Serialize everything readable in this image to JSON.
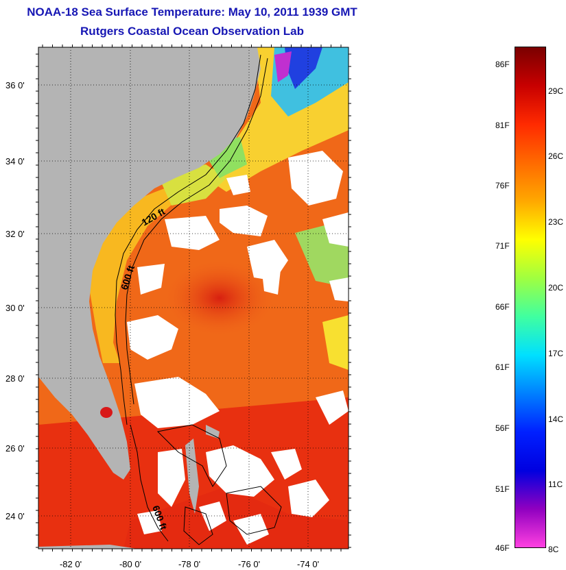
{
  "header": {
    "title": "NOAA-18 Sea Surface Temperature:  May 10, 2011 1939 GMT",
    "subtitle": "Rutgers Coastal Ocean Observation Lab"
  },
  "map": {
    "lat_labels": [
      "36 0'",
      "34 0'",
      "32 0'",
      "30 0'",
      "28 0'",
      "26 0'",
      "24 0'"
    ],
    "lon_labels": [
      "-82 0'",
      "-80 0'",
      "-78 0'",
      "-76 0'",
      "-74 0'"
    ],
    "contour_labels": [
      "120 ft",
      "600 ft",
      "600 ft"
    ],
    "colors": {
      "land": "#b4b4b4",
      "cloud": "#ffffff",
      "warm_water": "#e83010",
      "mid_water": "#f06818",
      "shelf_water": "#f8b820",
      "cool_water": "#40c0e0",
      "cold_water": "#2040e0"
    }
  },
  "colorbar": {
    "fahrenheit_labels": [
      "86F",
      "81F",
      "76F",
      "71F",
      "66F",
      "61F",
      "56F",
      "51F",
      "46F"
    ],
    "celsius_labels": [
      "29C",
      "26C",
      "23C",
      "20C",
      "17C",
      "14C",
      "11C",
      "8C"
    ],
    "gradient": [
      "#7a0000",
      "#c80000",
      "#ff2a00",
      "#ff6a00",
      "#ffa800",
      "#ffff00",
      "#a0ff40",
      "#40ffa0",
      "#00e0ff",
      "#0080ff",
      "#0020ff",
      "#0000e0",
      "#9000c0",
      "#ff40e0"
    ]
  }
}
